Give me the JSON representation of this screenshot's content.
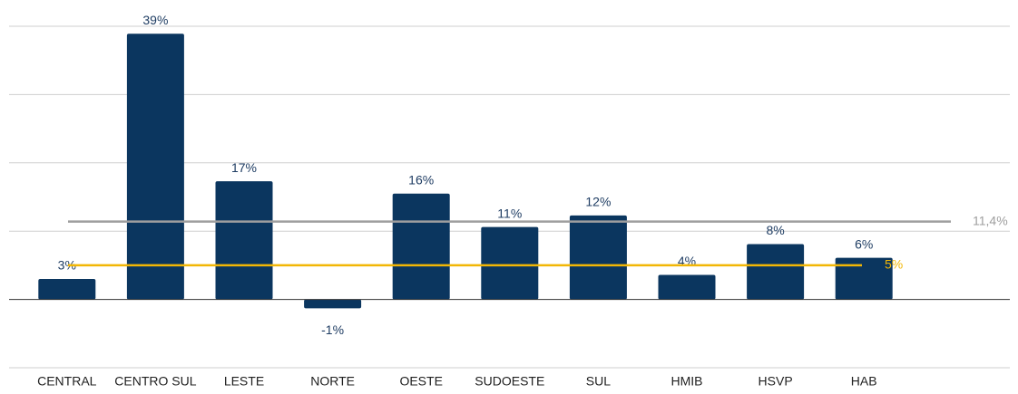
{
  "chart_data": {
    "type": "bar",
    "categories": [
      "CENTRAL",
      "CENTRO SUL",
      "LESTE",
      "NORTE",
      "OESTE",
      "SUDOESTE",
      "SUL",
      "HMIB",
      "HSVP",
      "HAB"
    ],
    "values": [
      3.0,
      38.9,
      17.3,
      -1.3,
      15.5,
      10.6,
      12.3,
      3.6,
      8.1,
      6.1
    ],
    "value_labels": [
      "3%",
      "39%",
      "17%",
      "-1%",
      "16%",
      "11%",
      "12%",
      "4%",
      "8%",
      "6%"
    ],
    "color": "#0b365f",
    "ylim": [
      -10,
      40
    ],
    "yticks": [
      -10,
      0,
      10,
      20,
      30,
      40
    ],
    "grid": true,
    "reference_lines": [
      {
        "value": 11.4,
        "label": "11,4%",
        "color": "#9e9e9e"
      },
      {
        "value": 5,
        "label": "5%",
        "color": "#f2b705"
      }
    ]
  }
}
